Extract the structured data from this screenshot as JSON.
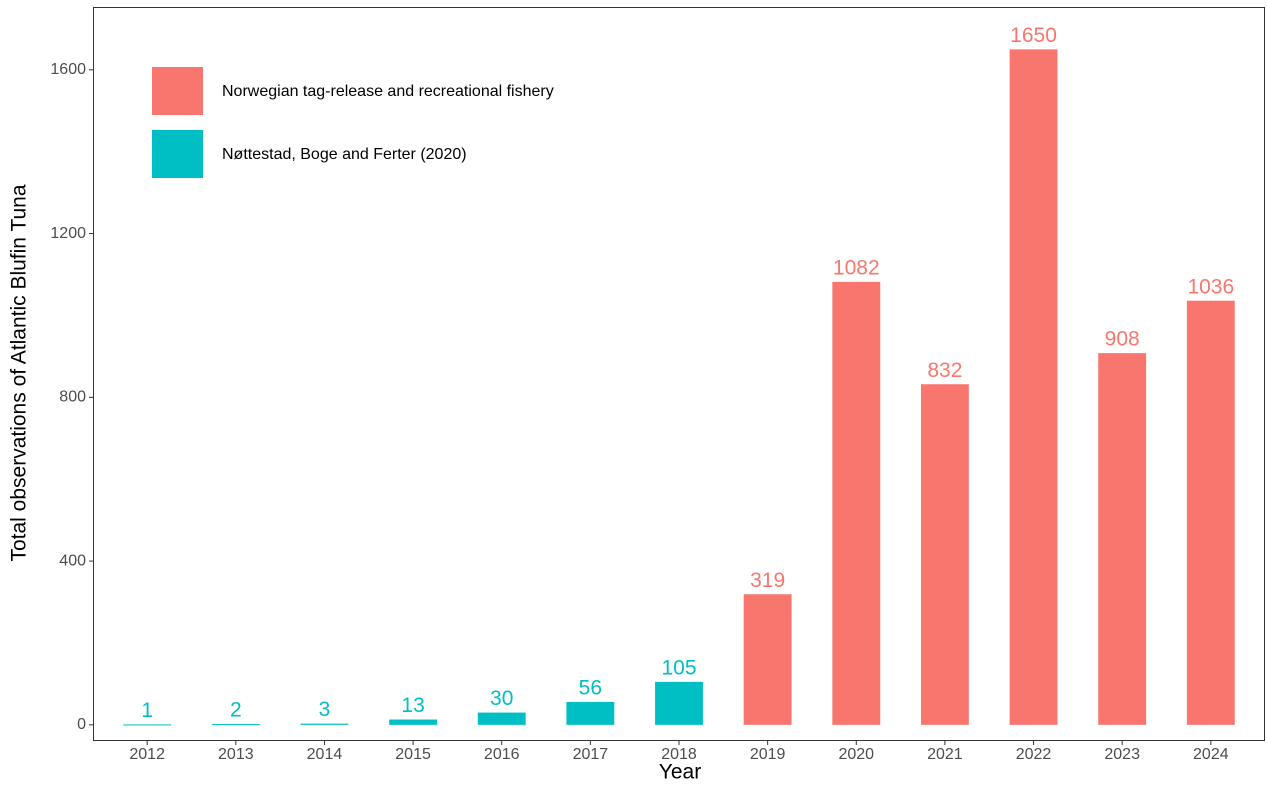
{
  "chart_data": {
    "type": "bar",
    "x_label": "Year",
    "y_label": "Total observations of Atlantic Blufin Tuna",
    "categories": [
      "2012",
      "2013",
      "2014",
      "2015",
      "2016",
      "2017",
      "2018",
      "2019",
      "2020",
      "2021",
      "2022",
      "2023",
      "2024"
    ],
    "series": [
      {
        "name": "Norwegian tag-release and recreational fishery",
        "color": "#f8766d",
        "values": [
          null,
          null,
          null,
          null,
          null,
          null,
          null,
          319,
          1082,
          832,
          1650,
          908,
          1036
        ]
      },
      {
        "name": "Nøttestad, Boge and Ferter (2020)",
        "color": "#00bfc4",
        "values": [
          1,
          2,
          3,
          13,
          30,
          56,
          105,
          null,
          null,
          null,
          null,
          null,
          null
        ]
      }
    ],
    "ylim": [
      -37,
      1751
    ],
    "yticks": [
      0,
      400,
      800,
      1200,
      1600
    ],
    "grid": true,
    "legend_position": "top-left"
  }
}
